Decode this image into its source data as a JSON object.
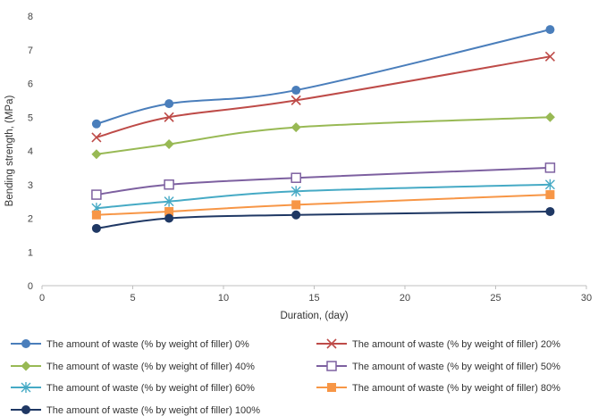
{
  "chart_data": {
    "type": "line",
    "title": "",
    "xlabel": "Duration, (day)",
    "ylabel": "Bending strength, (MPa)",
    "xlim": [
      0,
      30
    ],
    "ylim": [
      0,
      8
    ],
    "xticks": [
      0,
      5,
      10,
      15,
      20,
      25,
      30
    ],
    "yticks": [
      0,
      1,
      2,
      3,
      4,
      5,
      6,
      7,
      8
    ],
    "grid": false,
    "legend_position": "bottom",
    "x": [
      3,
      7,
      14,
      28
    ],
    "series": [
      {
        "name": "The amount of waste (% by weight of filler) 0%",
        "values": [
          4.8,
          5.4,
          5.8,
          7.6
        ],
        "color": "#4a7ebb",
        "marker": "circle"
      },
      {
        "name": "The amount of waste (% by weight of filler) 20%",
        "values": [
          4.4,
          5.0,
          5.5,
          6.8
        ],
        "color": "#be4b48",
        "marker": "x"
      },
      {
        "name": "The amount of waste (% by weight of filler) 40%",
        "values": [
          3.9,
          4.2,
          4.7,
          5.0
        ],
        "color": "#98b954",
        "marker": "diamond"
      },
      {
        "name": "The amount of waste (% by weight of filler) 50%",
        "values": [
          2.7,
          3.0,
          3.2,
          3.5
        ],
        "color": "#7d60a0",
        "marker": "square-open"
      },
      {
        "name": "The amount of waste (% by weight of filler) 60%",
        "values": [
          2.3,
          2.5,
          2.8,
          3.0
        ],
        "color": "#46aac5",
        "marker": "star"
      },
      {
        "name": "The amount of waste (% by weight of filler) 80%",
        "values": [
          2.1,
          2.2,
          2.4,
          2.7
        ],
        "color": "#f79646",
        "marker": "square"
      },
      {
        "name": "The amount of waste (% by weight of filler) 100%",
        "values": [
          1.7,
          2.0,
          2.1,
          2.2
        ],
        "color": "#1f3864",
        "marker": "circle"
      }
    ]
  }
}
